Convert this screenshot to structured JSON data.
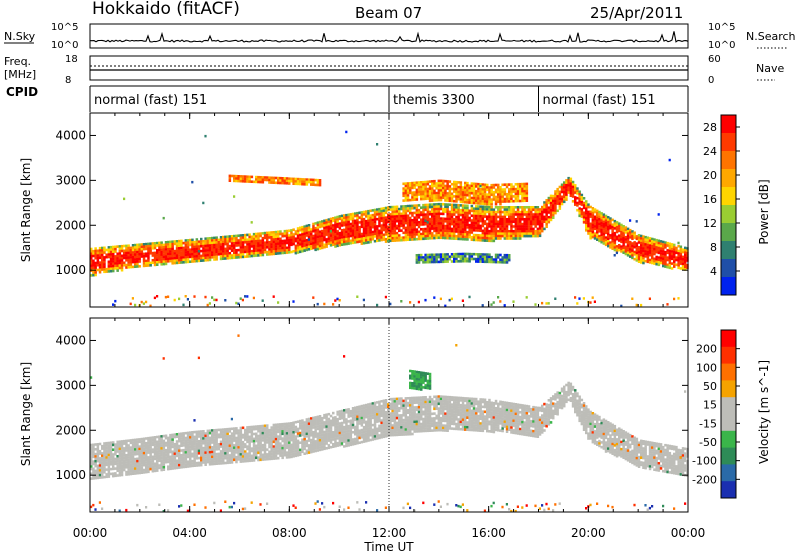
{
  "header": {
    "station": "Hokkaido (fitACF)",
    "beam": "Beam 07",
    "date": "25/Apr/2011"
  },
  "noise_panel": {
    "left_label": "N.Sky",
    "right_label": "N.Search",
    "left_ticks": [
      "10^5",
      "10^0"
    ],
    "right_ticks": [
      "10^5",
      "10^0"
    ]
  },
  "freq_panel": {
    "left_label_1": "Freq.",
    "left_label_2": "[MHz]",
    "right_label": "Nave",
    "left_ticks": [
      "18",
      "8"
    ],
    "right_ticks": [
      "60",
      "0"
    ]
  },
  "cpid_panel": {
    "label": "CPID",
    "segments": [
      {
        "label": "normal (fast) 151",
        "start_hour": 0
      },
      {
        "label": "themis 3300",
        "start_hour": 12
      },
      {
        "label": "normal (fast) 151",
        "start_hour": 18
      }
    ]
  },
  "colors": {
    "power_scale": [
      "#0022ee",
      "#1f4fa8",
      "#2f8070",
      "#5aa84a",
      "#9acd32",
      "#ffd500",
      "#ffa800",
      "#ff7400",
      "#ff3a00",
      "#ff0000"
    ],
    "velocity_scale": [
      "#1a2fb0",
      "#2a6aa8",
      "#2e8b57",
      "#3ab54a",
      "#bdbdb8",
      "#bdbdb8",
      "#f5a300",
      "#ff7000",
      "#ff3000",
      "#ff0000"
    ]
  },
  "chart_data": [
    {
      "type": "heatmap",
      "title": "",
      "ylabel": "Slant Range [km]",
      "xlabel": "Time UT",
      "xlim": [
        0,
        24
      ],
      "ylim": [
        180,
        4500
      ],
      "x_ticks": [
        "00:00",
        "04:00",
        "08:00",
        "12:00",
        "16:00",
        "20:00",
        "00:00"
      ],
      "y_ticks": [
        1000,
        2000,
        3000,
        4000
      ],
      "colorbar": {
        "label": "Power [dB]",
        "ticks": [
          4,
          8,
          12,
          16,
          20,
          24,
          28
        ],
        "range": [
          0,
          30
        ]
      },
      "echo_bands": [
        {
          "x": [
            0,
            2,
            4,
            6,
            8,
            10,
            12,
            14,
            16,
            18,
            19.2,
            20,
            22,
            24
          ],
          "y": [
            1200,
            1350,
            1450,
            1550,
            1650,
            1900,
            2050,
            2100,
            2050,
            2100,
            2900,
            2100,
            1500,
            1250
          ],
          "half_width_km": [
            300,
            250,
            250,
            250,
            260,
            330,
            380,
            400,
            380,
            330,
            200,
            350,
            300,
            250
          ],
          "level": "high"
        },
        {
          "x": [
            5.5,
            7.5,
            9.2
          ],
          "y": [
            3050,
            3000,
            2950
          ],
          "half_width_km": [
            80,
            80,
            80
          ],
          "level": "mid"
        },
        {
          "x": [
            12.5,
            14,
            16,
            17.5
          ],
          "y": [
            2750,
            2800,
            2700,
            2750
          ],
          "half_width_km": [
            200,
            220,
            220,
            200
          ],
          "level": "mid"
        },
        {
          "x": [
            13,
            15,
            16.8
          ],
          "y": [
            1280,
            1300,
            1280
          ],
          "half_width_km": [
            80,
            90,
            80
          ],
          "level": "low"
        }
      ]
    },
    {
      "type": "heatmap",
      "title": "",
      "ylabel": "Slant Range [km]",
      "xlabel": "Time UT",
      "xlim": [
        0,
        24
      ],
      "ylim": [
        180,
        4500
      ],
      "x_ticks": [
        "00:00",
        "04:00",
        "08:00",
        "12:00",
        "16:00",
        "20:00",
        "00:00"
      ],
      "y_ticks": [
        1000,
        2000,
        3000,
        4000
      ],
      "colorbar": {
        "label": "Velocity [m s^-1]",
        "ticks": [
          200,
          100,
          50,
          15,
          -15,
          -50,
          -100,
          -200
        ],
        "range": [
          -250,
          250
        ]
      },
      "echo_bands": [
        {
          "x": [
            0,
            2,
            4,
            6,
            8,
            10,
            12,
            14,
            16,
            18,
            19.2,
            20,
            22,
            24
          ],
          "y": [
            1300,
            1450,
            1600,
            1700,
            1800,
            2050,
            2300,
            2400,
            2350,
            2200,
            2900,
            2100,
            1500,
            1300
          ],
          "half_width_km": [
            400,
            380,
            380,
            380,
            380,
            400,
            420,
            380,
            350,
            320,
            200,
            350,
            300,
            300
          ],
          "level": "grey"
        },
        {
          "x": [
            12.8,
            13.6
          ],
          "y": [
            3150,
            3100
          ],
          "half_width_km": [
            200,
            180
          ],
          "level": "green"
        }
      ]
    }
  ]
}
